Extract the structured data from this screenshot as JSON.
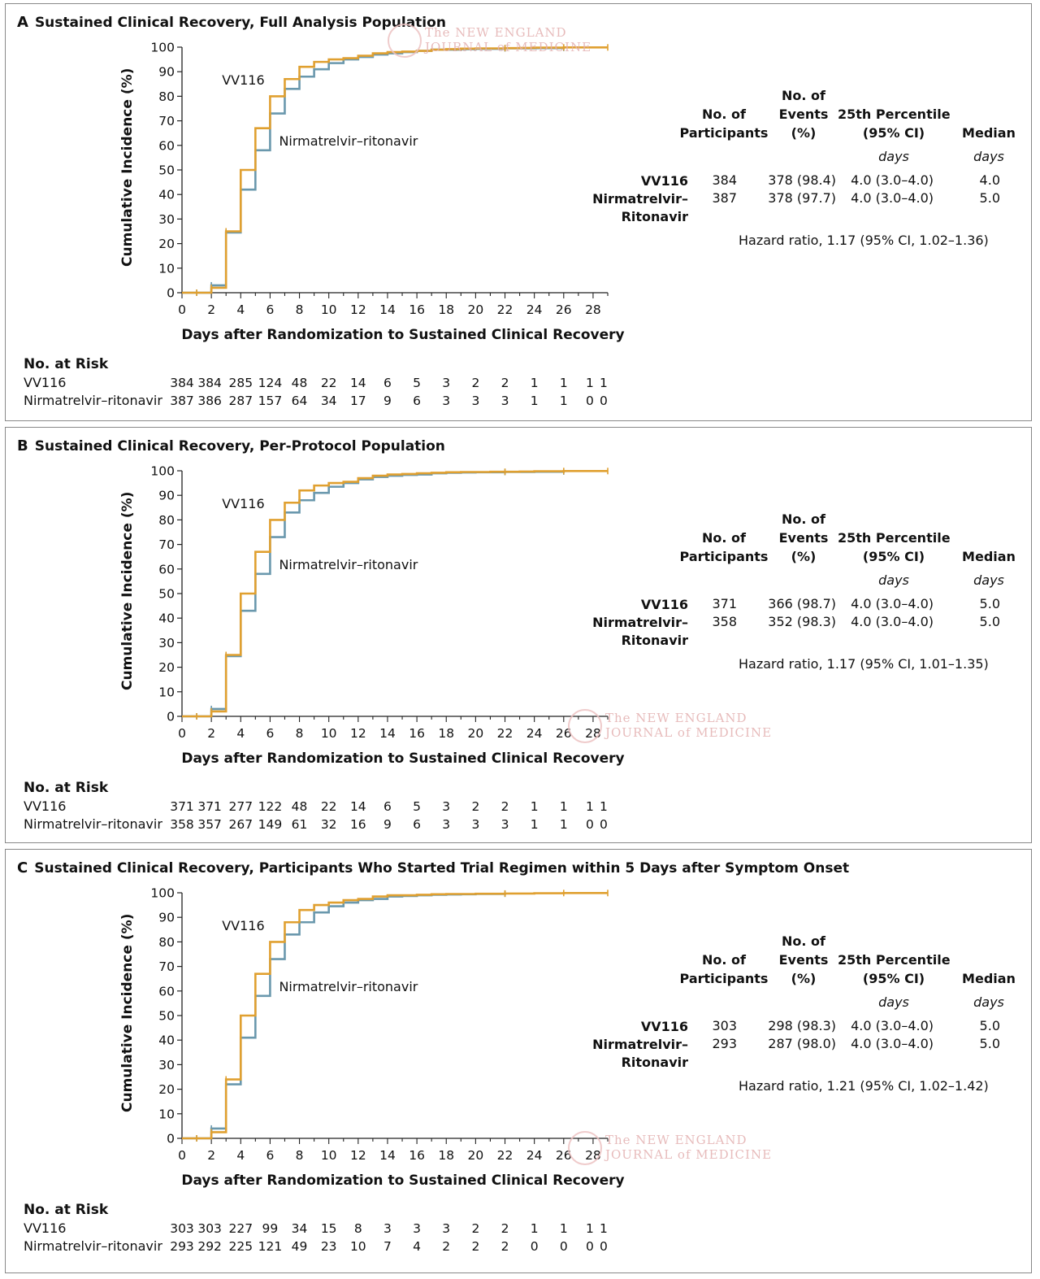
{
  "axis": {
    "xlabel": "Days after Randomization to Sustained Clinical Recovery",
    "ylabel": "Cumulative Incidence (%)",
    "xticks": [
      0,
      2,
      4,
      6,
      8,
      10,
      12,
      14,
      16,
      18,
      20,
      22,
      24,
      26,
      28
    ],
    "yticks": [
      0,
      10,
      20,
      30,
      40,
      50,
      60,
      70,
      80,
      90,
      100
    ]
  },
  "labels": {
    "vv116": "VV116",
    "nirmatrelvir": "Nirmatrelvir–ritonavir",
    "risk_title": "No. at Risk",
    "hdr_participants_1": "No. of",
    "hdr_participants_2": "Participants",
    "hdr_events_1": "No. of",
    "hdr_events_2": "Events",
    "hdr_events_3": "(%)",
    "hdr_p25_1": "25th Percentile",
    "hdr_p25_2": "(95% CI)",
    "hdr_median": "Median",
    "unit_days": "days",
    "grp_vv116": "VV116",
    "grp_nirm_1": "Nirmatrelvir–",
    "grp_nirm_2": "Ritonavir"
  },
  "watermark": {
    "line1": "The NEW ENGLAND",
    "line2": "JOURNAL of MEDICINE"
  },
  "colors": {
    "vv116": "#e0a030",
    "nirmatrelvir": "#6a98ad",
    "frame": "#888888"
  },
  "chart_data": [
    {
      "type": "line",
      "letter": "A",
      "title": "Sustained Clinical Recovery, Full Analysis Population",
      "xlim": [
        0,
        29
      ],
      "ylim": [
        0,
        100
      ],
      "series": [
        {
          "name": "VV116",
          "x": [
            0,
            1,
            2,
            3,
            4,
            5,
            6,
            7,
            8,
            9,
            10,
            11,
            12,
            13,
            14,
            15,
            16,
            17,
            18,
            19,
            20,
            21,
            22,
            23,
            24,
            25,
            26,
            27,
            28,
            29
          ],
          "y": [
            0,
            0,
            2,
            25,
            50,
            67,
            80,
            87,
            92,
            94,
            95,
            95.5,
            96.5,
            97.5,
            98,
            98.2,
            98.5,
            99,
            99.2,
            99.4,
            99.5,
            99.5,
            99.6,
            99.7,
            99.8,
            99.8,
            99.9,
            99.9,
            99.9,
            99.9
          ]
        },
        {
          "name": "Nirmatrelvir–ritonavir",
          "x": [
            0,
            1,
            2,
            3,
            4,
            5,
            6,
            7,
            8,
            9,
            10,
            11,
            12,
            13,
            14,
            15,
            16,
            17,
            18,
            19,
            20,
            21,
            22,
            23,
            24,
            25,
            26
          ],
          "y": [
            0,
            0,
            3,
            24.5,
            42,
            58,
            73,
            83,
            88,
            91,
            93.5,
            95,
            96,
            97,
            97.5,
            98,
            98.5,
            99,
            99,
            99.2,
            99.3,
            99.3,
            99.5,
            99.5,
            99.6,
            99.6,
            99.7
          ]
        }
      ],
      "annotations": {
        "vv116_label_xy": [
          3,
          83
        ],
        "nirm_label_xy": [
          6.5,
          62
        ]
      },
      "stats": {
        "vv116": {
          "participants": "384",
          "events": "378 (98.4)",
          "p25": "4.0 (3.0–4.0)",
          "median": "4.0"
        },
        "nirmatrelvir": {
          "participants": "387",
          "events": "378 (97.7)",
          "p25": "4.0 (3.0–4.0)",
          "median": "5.0"
        },
        "hazard": "Hazard ratio, 1.17 (95% CI, 1.02–1.36)"
      },
      "risk_days": [
        1,
        2,
        4,
        6,
        8,
        10,
        12,
        14,
        16,
        18,
        20,
        22,
        24,
        26,
        28,
        29
      ],
      "risk": {
        "vv116": [
          "384",
          "384",
          "285",
          "124",
          "48",
          "22",
          "14",
          "6",
          "5",
          "3",
          "2",
          "2",
          "1",
          "1",
          "1",
          "1"
        ],
        "nirmatrelvir": [
          "387",
          "386",
          "287",
          "157",
          "64",
          "34",
          "17",
          "9",
          "6",
          "3",
          "3",
          "3",
          "1",
          "1",
          "0",
          "0"
        ]
      }
    },
    {
      "type": "line",
      "letter": "B",
      "title": "Sustained Clinical Recovery, Per-Protocol Population",
      "xlim": [
        0,
        29
      ],
      "ylim": [
        0,
        100
      ],
      "series": [
        {
          "name": "VV116",
          "x": [
            0,
            1,
            2,
            3,
            4,
            5,
            6,
            7,
            8,
            9,
            10,
            11,
            12,
            13,
            14,
            15,
            16,
            17,
            18,
            19,
            20,
            21,
            22,
            23,
            24,
            25,
            26,
            27,
            28,
            29
          ],
          "y": [
            0,
            0,
            2,
            25,
            50,
            67,
            80,
            87,
            92,
            94,
            95,
            95.5,
            97,
            98,
            98.5,
            98.7,
            99,
            99.2,
            99.4,
            99.5,
            99.5,
            99.6,
            99.6,
            99.7,
            99.8,
            99.8,
            99.9,
            99.9,
            99.9,
            99.9
          ]
        },
        {
          "name": "Nirmatrelvir–ritonavir",
          "x": [
            0,
            1,
            2,
            3,
            4,
            5,
            6,
            7,
            8,
            9,
            10,
            11,
            12,
            13,
            14,
            15,
            16,
            17,
            18,
            19,
            20,
            21,
            22,
            23,
            24,
            25,
            26
          ],
          "y": [
            0,
            0,
            3,
            24.5,
            43,
            58,
            73,
            83,
            88,
            91,
            93.5,
            95,
            96.5,
            97.5,
            98,
            98.3,
            98.5,
            99,
            99.2,
            99.3,
            99.4,
            99.4,
            99.5,
            99.5,
            99.6,
            99.6,
            99.7
          ]
        }
      ],
      "annotations": {
        "vv116_label_xy": [
          3,
          83
        ],
        "nirm_label_xy": [
          6.5,
          62
        ]
      },
      "stats": {
        "vv116": {
          "participants": "371",
          "events": "366 (98.7)",
          "p25": "4.0 (3.0–4.0)",
          "median": "5.0"
        },
        "nirmatrelvir": {
          "participants": "358",
          "events": "352 (98.3)",
          "p25": "4.0 (3.0–4.0)",
          "median": "5.0"
        },
        "hazard": "Hazard ratio, 1.17 (95% CI, 1.01–1.35)"
      },
      "risk_days": [
        1,
        2,
        4,
        6,
        8,
        10,
        12,
        14,
        16,
        18,
        20,
        22,
        24,
        26,
        28,
        29
      ],
      "risk": {
        "vv116": [
          "371",
          "371",
          "277",
          "122",
          "48",
          "22",
          "14",
          "6",
          "5",
          "3",
          "2",
          "2",
          "1",
          "1",
          "1",
          "1"
        ],
        "nirmatrelvir": [
          "358",
          "357",
          "267",
          "149",
          "61",
          "32",
          "16",
          "9",
          "6",
          "3",
          "3",
          "3",
          "1",
          "1",
          "0",
          "0"
        ]
      }
    },
    {
      "type": "line",
      "letter": "C",
      "title": "Sustained Clinical Recovery, Participants Who Started Trial Regimen within 5 Days after Symptom Onset",
      "xlim": [
        0,
        29
      ],
      "ylim": [
        0,
        100
      ],
      "series": [
        {
          "name": "VV116",
          "x": [
            0,
            1,
            2,
            3,
            4,
            5,
            6,
            7,
            8,
            9,
            10,
            11,
            12,
            13,
            14,
            15,
            16,
            17,
            18,
            19,
            20,
            21,
            22,
            23,
            24,
            25,
            26,
            27,
            28,
            29
          ],
          "y": [
            0,
            0,
            2.5,
            24,
            50,
            67,
            80,
            88,
            93,
            95,
            96,
            97,
            97.5,
            98.5,
            99,
            99,
            99.2,
            99.4,
            99.5,
            99.5,
            99.6,
            99.6,
            99.7,
            99.7,
            99.8,
            99.8,
            99.9,
            99.9,
            99.9,
            99.9
          ]
        },
        {
          "name": "Nirmatrelvir–ritonavir",
          "x": [
            0,
            1,
            2,
            3,
            4,
            5,
            6,
            7,
            8,
            9,
            10,
            11,
            12,
            13,
            14,
            15,
            16,
            17,
            18,
            19,
            20,
            21,
            22
          ],
          "y": [
            0,
            0,
            4,
            22,
            41,
            58,
            73,
            83,
            88,
            92,
            94.5,
            96,
            97,
            97.5,
            98.5,
            98.7,
            99,
            99.2,
            99.3,
            99.4,
            99.5,
            99.5,
            99.6
          ]
        }
      ],
      "annotations": {
        "vv116_label_xy": [
          3,
          83
        ],
        "nirm_label_xy": [
          6.5,
          62
        ]
      },
      "stats": {
        "vv116": {
          "participants": "303",
          "events": "298 (98.3)",
          "p25": "4.0 (3.0–4.0)",
          "median": "5.0"
        },
        "nirmatrelvir": {
          "participants": "293",
          "events": "287 (98.0)",
          "p25": "4.0 (3.0–4.0)",
          "median": "5.0"
        },
        "hazard": "Hazard ratio, 1.21 (95% CI, 1.02–1.42)"
      },
      "risk_days": [
        1,
        2,
        4,
        6,
        8,
        10,
        12,
        14,
        16,
        18,
        20,
        22,
        24,
        26,
        28,
        29
      ],
      "risk": {
        "vv116": [
          "303",
          "303",
          "227",
          "99",
          "34",
          "15",
          "8",
          "3",
          "3",
          "3",
          "2",
          "2",
          "1",
          "1",
          "1",
          "1"
        ],
        "nirmatrelvir": [
          "293",
          "292",
          "225",
          "121",
          "49",
          "23",
          "10",
          "7",
          "4",
          "2",
          "2",
          "2",
          "0",
          "0",
          "0",
          "0"
        ]
      }
    }
  ]
}
